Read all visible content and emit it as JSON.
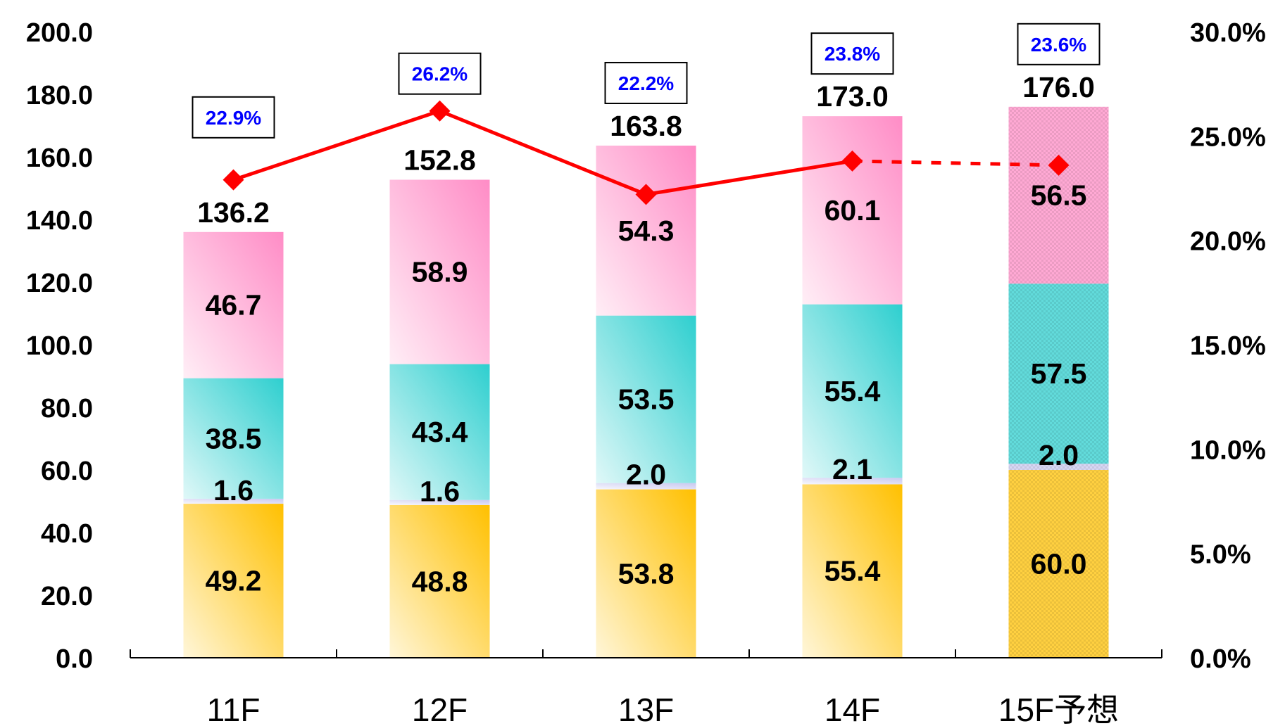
{
  "chart_data": {
    "type": "bar",
    "stacked": true,
    "categories": [
      "11F",
      "12F",
      "13F",
      "14F",
      "15F予想"
    ],
    "projected_category_index": 4,
    "series": [
      {
        "values": [
          49.2,
          48.8,
          53.8,
          55.4,
          60.0
        ],
        "color": "#ffc000"
      },
      {
        "values": [
          1.6,
          1.6,
          2.0,
          2.1,
          2.0
        ],
        "color": "#c9c9f0"
      },
      {
        "values": [
          38.5,
          43.4,
          53.5,
          55.4,
          57.5
        ],
        "color": "#2ecfcf"
      },
      {
        "values": [
          46.7,
          58.9,
          54.3,
          60.1,
          56.5
        ],
        "color": "#ff8cc6"
      }
    ],
    "totals": [
      "136.2",
      "152.8",
      "163.8",
      "173.0",
      "176.0"
    ],
    "ratio_series": {
      "values": [
        22.9,
        26.2,
        22.2,
        23.8,
        23.6
      ],
      "labels": [
        "22.9%",
        "26.2%",
        "22.2%",
        "23.8%",
        "23.6%"
      ],
      "color": "#ff0000",
      "dashed_last_segment": true,
      "axis": "secondary"
    },
    "y_axis": {
      "min": 0,
      "max": 200,
      "ticks": [
        "0.0",
        "20.0",
        "40.0",
        "60.0",
        "80.0",
        "100.0",
        "120.0",
        "140.0",
        "160.0",
        "180.0",
        "200.0"
      ]
    },
    "y2_axis": {
      "min": 0,
      "max": 30,
      "ticks": [
        "0.0%",
        "5.0%",
        "10.0%",
        "15.0%",
        "20.0%",
        "25.0%",
        "30.0%"
      ]
    },
    "grid": false,
    "legend": "none"
  }
}
